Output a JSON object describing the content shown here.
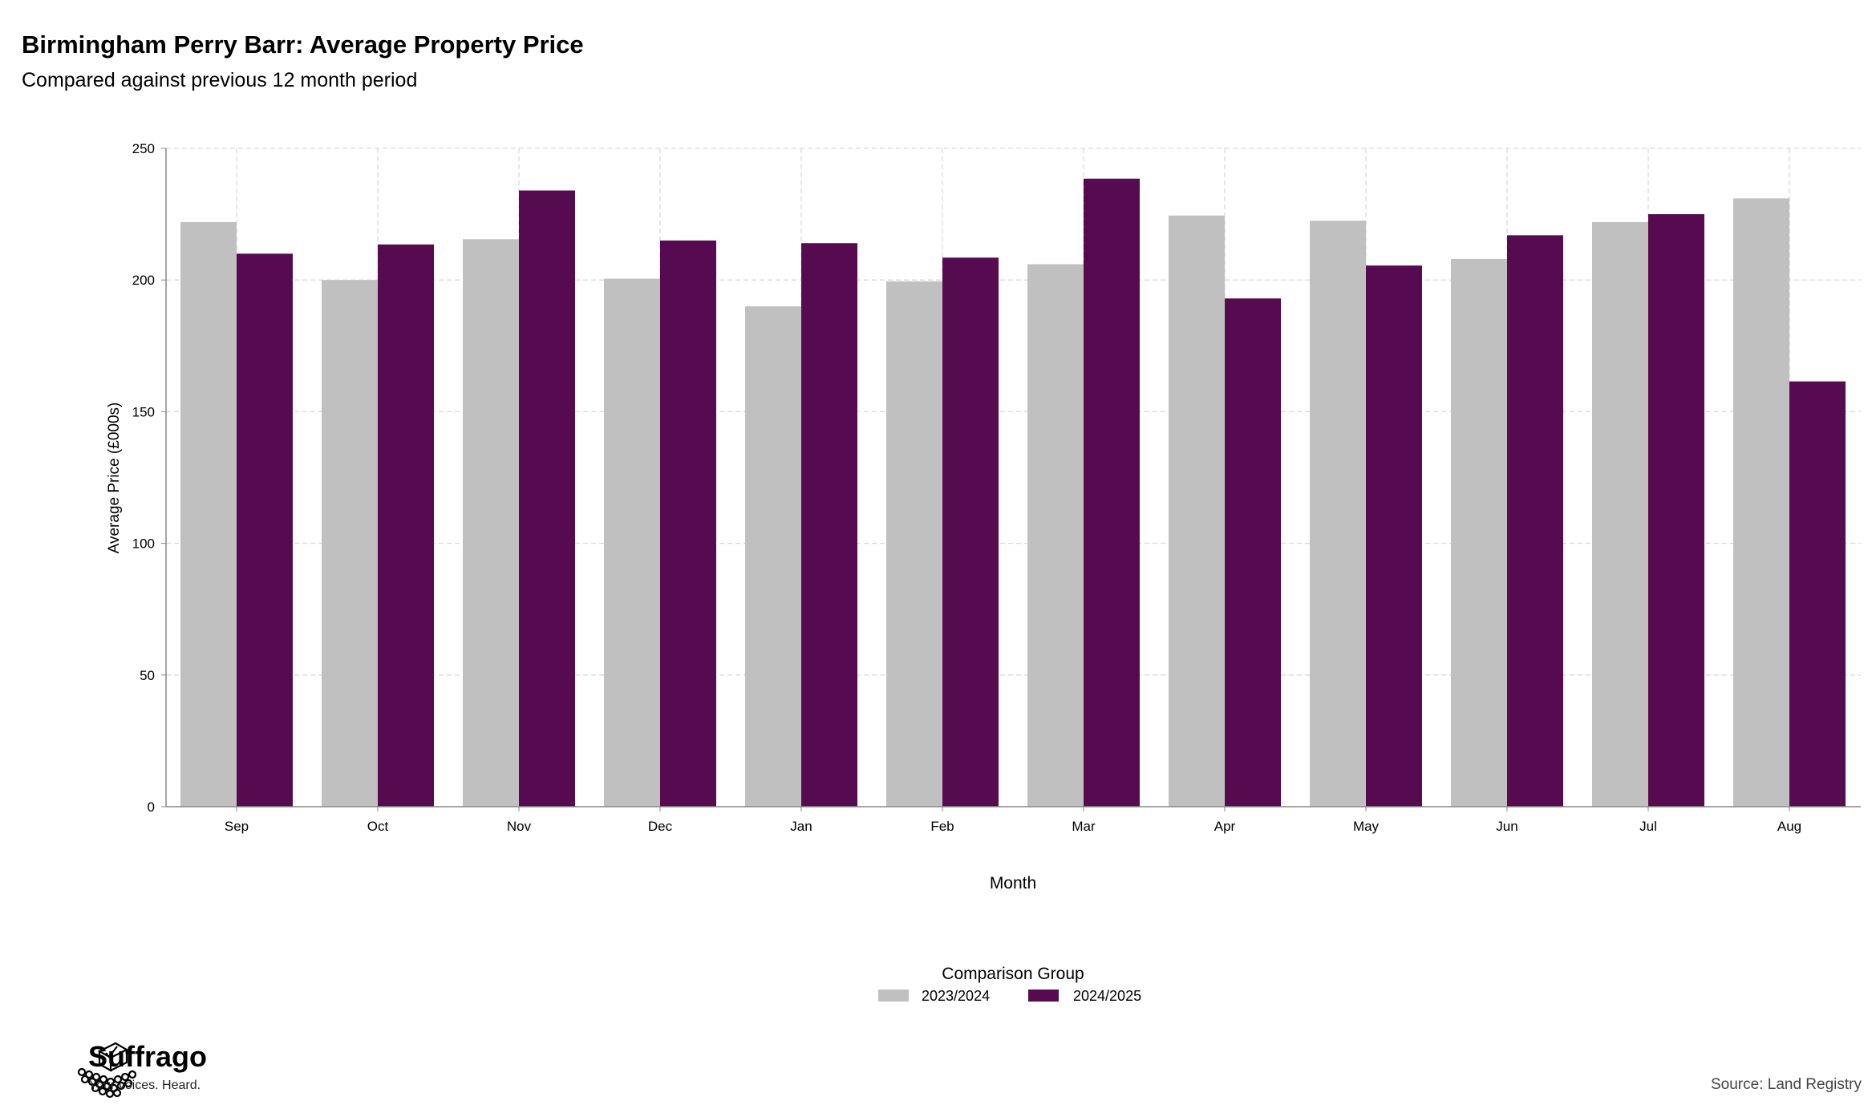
{
  "header": {
    "title": "Birmingham Perry Barr: Average Property Price",
    "subtitle": "Compared against previous 12 month period"
  },
  "footer": {
    "brand_name": "Suffrago",
    "brand_tagline": "Your voices. Heard.",
    "source": "Source: Land Registry"
  },
  "colors": {
    "series_2023_2024": "#c0c0c0",
    "series_2024_2025": "#560b50",
    "grid": "#d9d9d9",
    "axis": "#888888"
  },
  "chart_data": {
    "type": "bar",
    "categories": [
      "Sep",
      "Oct",
      "Nov",
      "Dec",
      "Jan",
      "Feb",
      "Mar",
      "Apr",
      "May",
      "Jun",
      "Jul",
      "Aug"
    ],
    "series": [
      {
        "name": "2023/2024",
        "color": "#c0c0c0",
        "values": [
          222,
          200,
          215.5,
          200.5,
          190,
          199.5,
          206,
          224.5,
          222.5,
          208,
          222,
          231
        ]
      },
      {
        "name": "2024/2025",
        "color": "#560b50",
        "values": [
          210,
          213.5,
          234,
          215,
          214,
          208.5,
          238.5,
          193,
          205.5,
          217,
          225,
          161.5
        ]
      }
    ],
    "xlabel": "Month",
    "ylabel": "Average Price (£000s)",
    "ylim": [
      0,
      250
    ],
    "yticks": [
      0,
      50,
      100,
      150,
      200,
      250
    ],
    "grid": true,
    "legend": {
      "title": "Comparison Group",
      "placement": "bottom-center",
      "entries": [
        "2023/2024",
        "2024/2025"
      ]
    }
  }
}
